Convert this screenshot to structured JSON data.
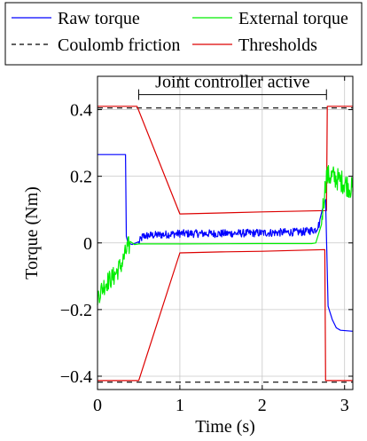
{
  "chart_data": {
    "type": "line",
    "xlabel": "Time (s)",
    "ylabel": "Torque (Nm)",
    "xlim": [
      0,
      3.1
    ],
    "ylim": [
      -0.44,
      0.5
    ],
    "grid": true,
    "legend_placement": "top",
    "x_ticks": [
      {
        "value": 0,
        "label": "0"
      },
      {
        "value": 1,
        "label": "1"
      },
      {
        "value": 2,
        "label": "2"
      },
      {
        "value": 3,
        "label": "3"
      }
    ],
    "y_ticks": [
      {
        "value": -0.4,
        "label": "−0.4"
      },
      {
        "value": -0.2,
        "label": "−0.2"
      },
      {
        "value": 0,
        "label": "0"
      },
      {
        "value": 0.2,
        "label": "0.2"
      },
      {
        "value": 0.4,
        "label": "0.4"
      }
    ],
    "annotation": {
      "text": "Joint controller active",
      "x_start": 0.5,
      "x_end": 2.78,
      "y": 0.445
    },
    "series": [
      {
        "name": "Raw torque",
        "color": "#0000ff",
        "style": "solid",
        "points": [
          [
            0,
            0.265
          ],
          [
            0.34,
            0.265
          ],
          [
            0.35,
            0.02
          ],
          [
            0.37,
            0.0
          ],
          [
            0.42,
            -0.005
          ],
          [
            0.5,
            0.0
          ],
          [
            0.55,
            0.02
          ],
          [
            0.6,
            0.022
          ],
          [
            0.8,
            0.025
          ],
          [
            1.0,
            0.028
          ],
          [
            1.5,
            0.028
          ],
          [
            2.0,
            0.03
          ],
          [
            2.5,
            0.033
          ],
          [
            2.65,
            0.04
          ],
          [
            2.7,
            0.06
          ],
          [
            2.75,
            0.12
          ],
          [
            2.77,
            0.13
          ],
          [
            2.8,
            -0.19
          ],
          [
            2.85,
            -0.23
          ],
          [
            2.9,
            -0.255
          ],
          [
            2.95,
            -0.262
          ],
          [
            3.1,
            -0.265
          ]
        ],
        "noise": [
          {
            "x_start": 0.5,
            "x_end": 2.7,
            "amplitude": 0.012
          }
        ]
      },
      {
        "name": "External torque",
        "color": "#00ee00",
        "style": "solid",
        "points": [
          [
            0,
            -0.16
          ],
          [
            0.1,
            -0.12
          ],
          [
            0.2,
            -0.1
          ],
          [
            0.3,
            -0.06
          ],
          [
            0.37,
            -0.01
          ],
          [
            0.45,
            -0.005
          ],
          [
            0.5,
            -0.003
          ],
          [
            1.0,
            -0.003
          ],
          [
            2.0,
            -0.002
          ],
          [
            2.6,
            -0.002
          ],
          [
            2.65,
            0.0
          ],
          [
            2.72,
            0.07
          ],
          [
            2.78,
            0.2
          ],
          [
            2.85,
            0.2
          ],
          [
            3.0,
            0.18
          ],
          [
            3.1,
            0.16
          ]
        ],
        "noise": [
          {
            "x_start": 0.0,
            "x_end": 0.4,
            "amplitude": 0.03
          },
          {
            "x_start": 2.72,
            "x_end": 3.1,
            "amplitude": 0.035
          }
        ]
      },
      {
        "name": "Coulomb friction",
        "color": "#000000",
        "style": "dashed",
        "segments": [
          [
            [
              0.0,
              0.405
            ],
            [
              3.1,
              0.405
            ]
          ],
          [
            [
              0.0,
              -0.418
            ],
            [
              3.1,
              -0.418
            ]
          ]
        ]
      },
      {
        "name": "Thresholds",
        "color": "#dd0000",
        "style": "solid",
        "segments": [
          [
            [
              0,
              0.41
            ],
            [
              0.48,
              0.41
            ],
            [
              1.0,
              0.087
            ],
            [
              1.5,
              0.09
            ],
            [
              2.0,
              0.093
            ],
            [
              2.78,
              0.097
            ],
            [
              2.79,
              0.41
            ],
            [
              3.1,
              0.41
            ]
          ],
          [
            [
              0,
              -0.413
            ],
            [
              0.5,
              -0.413
            ],
            [
              1.0,
              -0.03
            ],
            [
              1.5,
              -0.027
            ],
            [
              2.0,
              -0.025
            ],
            [
              2.76,
              -0.02
            ],
            [
              2.77,
              -0.413
            ],
            [
              3.1,
              -0.413
            ]
          ]
        ]
      }
    ]
  }
}
